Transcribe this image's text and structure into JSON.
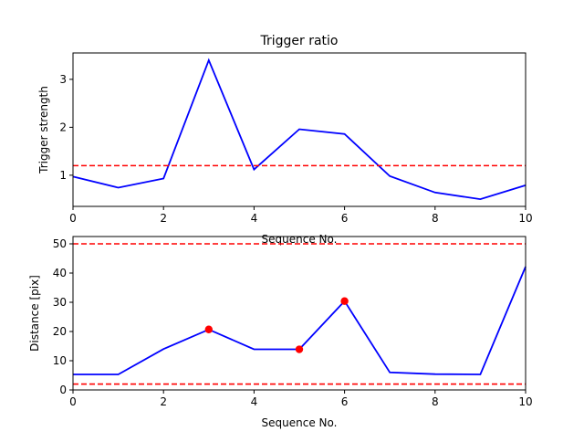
{
  "colors": {
    "line": "#0000ff",
    "threshold": "#ff0000",
    "marker": "#ff0000",
    "axes": "#000000",
    "background": "#ffffff"
  },
  "chart_data": [
    {
      "type": "line",
      "title": "Trigger ratio",
      "xlabel": "Sequence No.",
      "ylabel": "Trigger strength",
      "xlim": [
        0,
        10
      ],
      "ylim": [
        0.35,
        3.55
      ],
      "xticks": [
        0,
        2,
        4,
        6,
        8,
        10
      ],
      "yticks": [
        1,
        2,
        3
      ],
      "grid": false,
      "series": [
        {
          "x": [
            0,
            1,
            2,
            3,
            4,
            5,
            6,
            7,
            8,
            9,
            10
          ],
          "values": [
            0.97,
            0.74,
            0.93,
            3.4,
            1.12,
            1.96,
            1.86,
            0.98,
            0.64,
            0.5,
            0.79
          ]
        }
      ],
      "hlines": [
        1.2
      ]
    },
    {
      "type": "line",
      "title": "",
      "xlabel": "Sequence No.",
      "ylabel": "Distance [pix]",
      "xlim": [
        0,
        10
      ],
      "ylim": [
        0,
        52.5
      ],
      "xticks": [
        0,
        2,
        4,
        6,
        8,
        10
      ],
      "yticks": [
        0,
        10,
        20,
        30,
        40,
        50
      ],
      "grid": false,
      "series": [
        {
          "x": [
            0,
            1,
            2,
            3,
            4,
            5,
            6,
            7,
            8,
            9,
            10
          ],
          "values": [
            5.3,
            5.3,
            14.0,
            20.7,
            13.9,
            13.9,
            30.4,
            6.0,
            5.4,
            5.3,
            42.2
          ]
        }
      ],
      "markers": [
        {
          "x": 3,
          "y": 20.7
        },
        {
          "x": 5,
          "y": 13.9
        },
        {
          "x": 6,
          "y": 30.4
        }
      ],
      "hlines": [
        50,
        2
      ]
    }
  ]
}
